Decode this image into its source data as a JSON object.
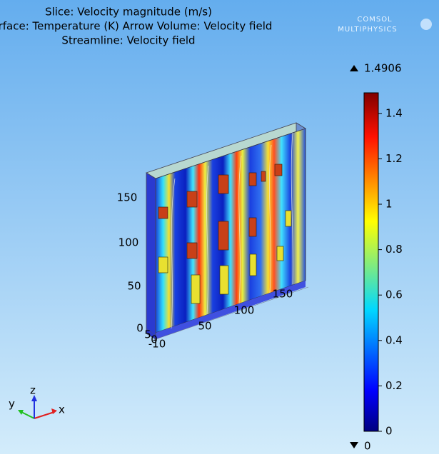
{
  "title_lines": [
    "Slice: Velocity magnitude (m/s)",
    "Surface: Temperature (K)  Arrow Volume: Velocity field",
    "Streamline: Velocity field"
  ],
  "logo": [
    "COMSOL",
    "MULTIPHYSICS"
  ],
  "colorbar": {
    "max": 1.4906,
    "min": 0,
    "ticks": [
      0,
      0.2,
      0.4,
      0.6,
      0.8,
      1,
      1.2,
      1.4
    ]
  },
  "axes": {
    "z_ticks": [
      "150",
      "100",
      "50",
      "0"
    ],
    "x_ticks": [
      "50",
      "100",
      "150"
    ],
    "y_ticks": [
      "5",
      "0",
      "-10"
    ]
  },
  "triad": {
    "x": "x",
    "y": "y",
    "z": "z"
  }
}
